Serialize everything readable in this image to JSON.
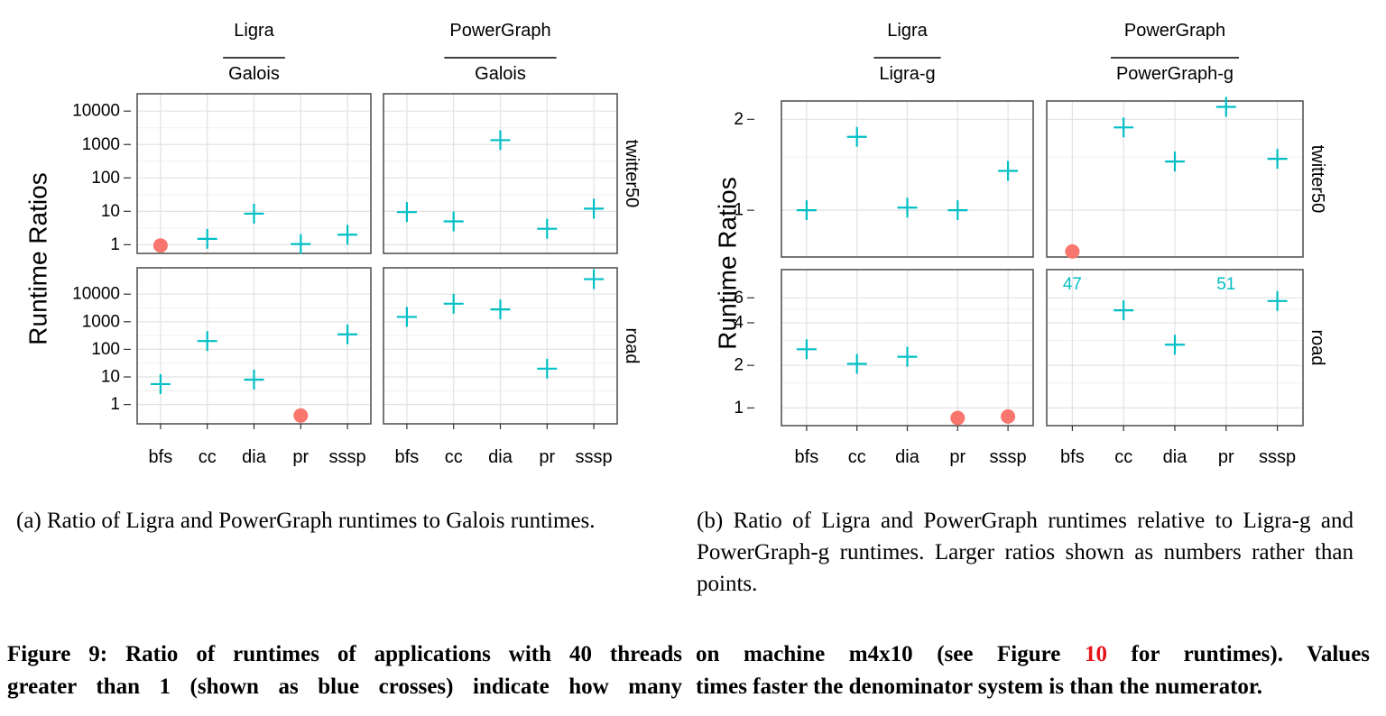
{
  "chart_data": [
    {
      "type": "scatter",
      "panel": "a",
      "ylabel": "Runtime Ratios",
      "y_scale": "log10",
      "categories": [
        "bfs",
        "cc",
        "dia",
        "pr",
        "sssp"
      ],
      "columns": [
        {
          "numerator": "Ligra",
          "denominator": "Galois"
        },
        {
          "numerator": "PowerGraph",
          "denominator": "Galois"
        }
      ],
      "rows": [
        "twitter50",
        "road"
      ],
      "yticks": {
        "twitter50": [
          "1",
          "10",
          "100",
          "1000",
          "10000"
        ],
        "road": [
          "1",
          "10",
          "100",
          "1000",
          "10000"
        ]
      },
      "ylim": {
        "twitter50": [
          0.55,
          33000
        ],
        "road": [
          0.2,
          90000
        ]
      },
      "grid": true,
      "marker_legend": {
        "cross": "ratio > 1",
        "dot": "ratio < 1"
      },
      "colors": {
        "cross": "#00bfc4",
        "dot": "#f8766d"
      },
      "cells": [
        {
          "row": "twitter50",
          "col": 0,
          "values": [
            0.95,
            1.5,
            8.5,
            1.05,
            2.0
          ]
        },
        {
          "row": "twitter50",
          "col": 1,
          "values": [
            9.5,
            5.0,
            1350,
            3.0,
            12
          ]
        },
        {
          "row": "road",
          "col": 0,
          "values": [
            5.5,
            200,
            8.0,
            0.4,
            350
          ]
        },
        {
          "row": "road",
          "col": 1,
          "values": [
            1500,
            4500,
            2800,
            20,
            35000
          ]
        }
      ]
    },
    {
      "type": "scatter",
      "panel": "b",
      "ylabel": "Runtime Ratios",
      "y_scale": "log",
      "categories": [
        "bfs",
        "cc",
        "dia",
        "pr",
        "sssp"
      ],
      "columns": [
        {
          "numerator": "Ligra",
          "denominator": "Ligra-g"
        },
        {
          "numerator": "PowerGraph",
          "denominator": "PowerGraph-g"
        }
      ],
      "rows": [
        "twitter50",
        "road"
      ],
      "yticks": {
        "twitter50": [
          "1",
          "2"
        ],
        "road": [
          "1",
          "2",
          "4",
          "6"
        ]
      },
      "ylim": {
        "twitter50": [
          0.7,
          2.3
        ],
        "road": [
          0.75,
          9.5
        ]
      },
      "grid": true,
      "colors": {
        "cross": "#00bfc4",
        "dot": "#f8766d"
      },
      "cells": [
        {
          "row": "twitter50",
          "col": 0,
          "values": [
            1.0,
            1.75,
            1.02,
            1.0,
            1.35
          ]
        },
        {
          "row": "twitter50",
          "col": 1,
          "values": [
            0.73,
            1.88,
            1.45,
            2.2,
            1.48
          ]
        },
        {
          "row": "road",
          "col": 0,
          "values": [
            2.6,
            2.05,
            2.3,
            0.85,
            0.87
          ]
        },
        {
          "row": "road",
          "col": 1,
          "values": [
            47,
            4.9,
            2.8,
            51,
            5.7
          ],
          "text_values": [
            "47",
            null,
            null,
            "51",
            null
          ]
        }
      ]
    }
  ],
  "captions": {
    "a": "(a) Ratio of Ligra and PowerGraph runtimes to Galois runtimes.",
    "b": "(b) Ratio of Ligra and PowerGraph runtimes relative to Ligra-g and PowerGraph-g runtimes. Larger ratios shown as numbers rather than points."
  },
  "figure_caption": {
    "line1_left": "Figure 9: Ratio of runtimes of applications with 40 threads",
    "line1_right_pre": "on machine m4x10 (see Figure",
    "line1_right_ref": "10",
    "line1_right_post": "for runtimes).  Values",
    "line2_left": "greater than 1 (shown as blue crosses) indicate how many",
    "line2_right": "times faster the denominator system is than the numerator."
  }
}
